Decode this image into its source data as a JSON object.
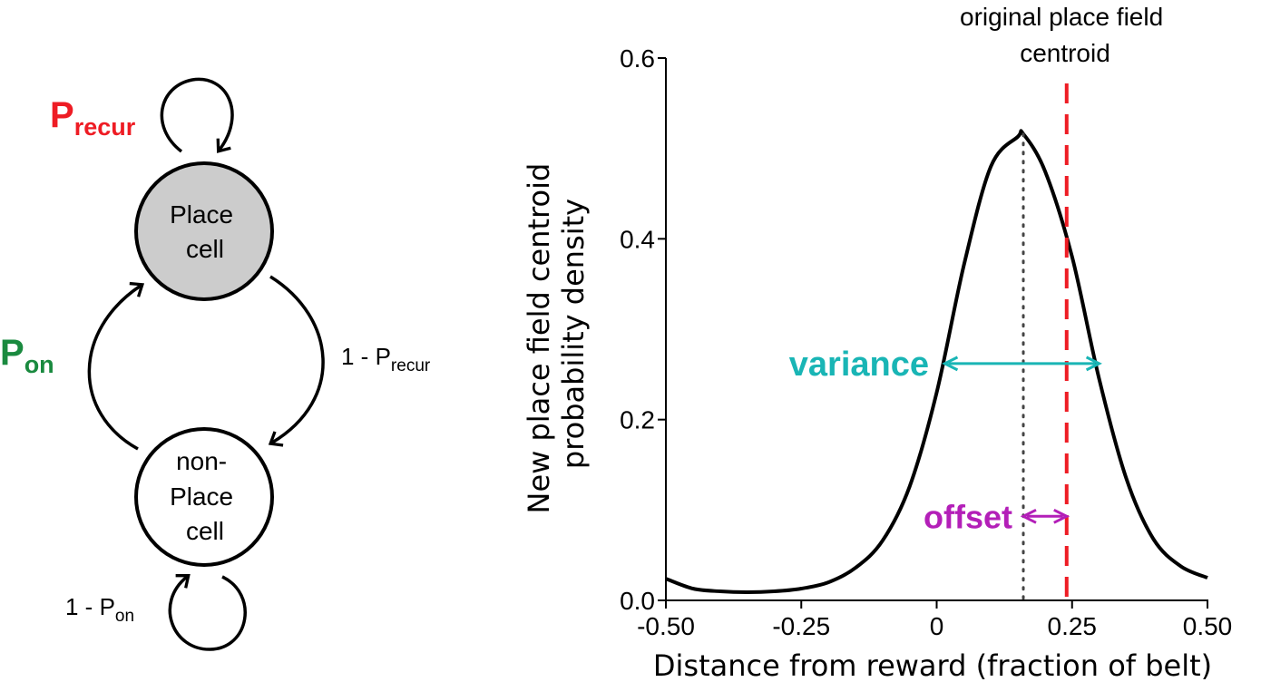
{
  "markov": {
    "nodes": {
      "place": [
        "Place",
        "cell"
      ],
      "nonplace": [
        "non-",
        "Place",
        "cell"
      ]
    },
    "labels": {
      "p_recur_main": "P",
      "p_recur_sub": "recur",
      "p_on_main": "P",
      "p_on_sub": "on",
      "one_minus_precur_prefix": "1 - P",
      "one_minus_precur_sub": "recur",
      "one_minus_pon_prefix": "1 - P",
      "one_minus_pon_sub": "on"
    },
    "colors": {
      "p_recur": "#ee1c24",
      "p_on": "#1a8a3f",
      "place_fill": "#cccccc"
    }
  },
  "chart_data": {
    "type": "line",
    "xlabel": "Distance from reward (fraction of belt)",
    "ylabel": [
      "New place field centroid",
      "probability density"
    ],
    "xlim": [
      -0.5,
      0.5
    ],
    "ylim": [
      0,
      0.6
    ],
    "xticks": [
      -0.5,
      -0.25,
      0,
      0.25,
      0.5
    ],
    "xtick_labels": [
      "-0.50",
      "-0.25",
      "0",
      "0.25",
      "0.50"
    ],
    "yticks": [
      0,
      0.2,
      0.4,
      0.6
    ],
    "ytick_labels": [
      "0.0",
      "0.2",
      "0.4",
      "0.6"
    ],
    "series": [
      {
        "color": "#000000",
        "x": [
          -0.5,
          -0.45,
          -0.4,
          -0.35,
          -0.3,
          -0.25,
          -0.2,
          -0.15,
          -0.1,
          -0.05,
          0,
          0.05,
          0.1,
          0.15,
          0.16,
          0.2,
          0.25,
          0.3,
          0.35,
          0.4,
          0.45,
          0.5
        ],
        "y": [
          0.024,
          0.013,
          0.01,
          0.009,
          0.01,
          0.013,
          0.02,
          0.036,
          0.066,
          0.126,
          0.23,
          0.37,
          0.48,
          0.513,
          0.516,
          0.475,
          0.38,
          0.245,
          0.135,
          0.068,
          0.038,
          0.025
        ]
      }
    ],
    "vlines": [
      {
        "x": 0.16,
        "style": "dotted",
        "color": "#444444"
      },
      {
        "x": 0.24,
        "style": "dashed",
        "color": "#ee1c24"
      }
    ],
    "annotations": {
      "centroid_label": [
        "original place field",
        "centroid"
      ],
      "variance": {
        "text": "variance",
        "color": "#19b5b5",
        "x_from": 0.015,
        "x_to": 0.3,
        "y": 0.262
      },
      "offset": {
        "text": "offset",
        "color": "#b31fb8",
        "x_from": 0.16,
        "x_to": 0.24,
        "y": 0.093
      }
    }
  }
}
